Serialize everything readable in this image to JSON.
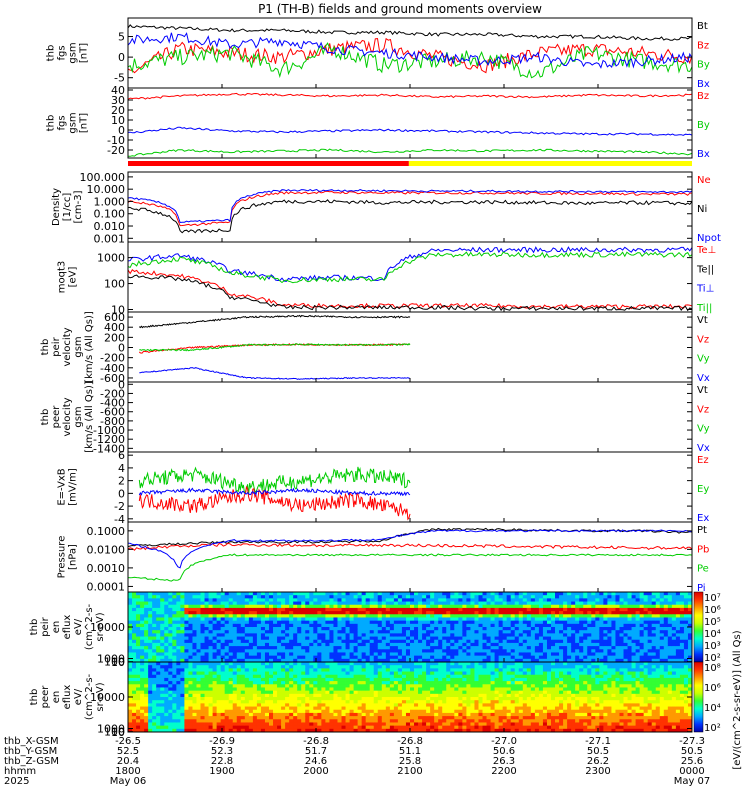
{
  "title": "P1 (TH-B) fields and ground moments overview",
  "chart_data": [
    {
      "type": "line",
      "ylabel": [
        "thb",
        "fgs",
        "gsm",
        "[nT]"
      ],
      "yticks": [
        5,
        0,
        -5
      ],
      "ylim": [
        -7.5,
        9.5
      ],
      "legend": [
        "Bt",
        "Bz",
        "By",
        "Bx"
      ],
      "legend_colors": [
        "#000000",
        "#ff0000",
        "#00cc00",
        "#0000ff"
      ],
      "series": [
        {
          "name": "Bt",
          "color": "#000000",
          "values": [
            7.5,
            7,
            6.5,
            6.5,
            6,
            6,
            5.5,
            5.5,
            5,
            5,
            4.5,
            4.5
          ],
          "noise": 0.4
        },
        {
          "name": "Bz",
          "color": "#ff0000",
          "values": [
            -4,
            2,
            1,
            0,
            2,
            3,
            0,
            -2,
            1,
            2,
            1,
            0
          ],
          "noise": 1.8
        },
        {
          "name": "By",
          "color": "#00cc00",
          "values": [
            -2,
            0,
            1,
            -3,
            2,
            -2,
            -1,
            0,
            -4,
            1,
            -1,
            -2
          ],
          "noise": 2.0
        },
        {
          "name": "Bx",
          "color": "#0000ff",
          "values": [
            4,
            5,
            3,
            4,
            2,
            1,
            0,
            -1,
            0,
            -2,
            -1,
            0
          ],
          "noise": 1.2
        }
      ]
    },
    {
      "type": "line",
      "ylabel": [
        "thb",
        "fgs",
        "gsm",
        "[nT]"
      ],
      "yticks": [
        40,
        30,
        20,
        10,
        0,
        -10,
        -20
      ],
      "ylim": [
        -28,
        42
      ],
      "legend": [
        "Bz",
        "By",
        "Bx"
      ],
      "legend_colors": [
        "#ff0000",
        "#00cc00",
        "#0000ff"
      ],
      "series": [
        {
          "name": "Bz",
          "color": "#ff0000",
          "values": [
            31,
            34,
            36,
            35,
            34,
            35,
            33,
            34,
            33,
            35,
            34,
            35
          ],
          "noise": 1
        },
        {
          "name": "By",
          "color": "#00cc00",
          "values": [
            -26,
            -20,
            -22,
            -21,
            -20,
            -22,
            -20,
            -21,
            -20,
            -21,
            -22,
            -24
          ],
          "noise": 1
        },
        {
          "name": "Bx",
          "color": "#0000ff",
          "values": [
            -3,
            2,
            -1,
            -2,
            -1,
            0,
            -1,
            -2,
            -3,
            -4,
            -4,
            -5
          ],
          "noise": 1
        }
      ]
    },
    {
      "type": "line",
      "scale": "log",
      "ylabel": [
        "Density",
        "[1/cc]",
        "[cm-3]"
      ],
      "yticks": [
        "100.000",
        "10.000",
        "1.000",
        "0.100",
        "0.010",
        "0.001"
      ],
      "ylim": [
        0.0005,
        250
      ],
      "legend": [
        "Ne",
        "Ni",
        "Npot"
      ],
      "legend_colors": [
        "#ff0000",
        "#000000",
        "#0000ff"
      ],
      "series": [
        {
          "name": "Ne",
          "color": "#ff0000",
          "values": [
            1,
            0.01,
            0.02,
            5,
            5.5,
            5,
            5,
            5,
            4.5,
            4.5,
            4,
            4
          ],
          "noise": 0.1
        },
        {
          "name": "Ni",
          "color": "#000000",
          "values": [
            0.3,
            0.003,
            0.005,
            1,
            1,
            0.8,
            0.9,
            0.9,
            0.8,
            0.7,
            0.8,
            0.7
          ],
          "noise": 0.15
        },
        {
          "name": "Npot",
          "color": "#0000ff",
          "values": [
            2,
            0.02,
            0.03,
            8,
            8,
            7.5,
            7,
            7,
            6.5,
            6.5,
            6,
            6
          ],
          "noise": 0.08
        }
      ]
    },
    {
      "type": "line",
      "scale": "log",
      "ylabel": [
        "moqt3",
        "[eV]"
      ],
      "yticks": [
        "1000",
        "100",
        "10"
      ],
      "ylim": [
        8,
        4000
      ],
      "legend": [
        "Te⊥",
        "Te||",
        "Ti⊥",
        "Ti||"
      ],
      "legend_colors": [
        "#ff0000",
        "#000000",
        "#0000ff",
        "#00cc00"
      ],
      "series": [
        {
          "name": "Ti⊥",
          "color": "#0000ff",
          "values": [
            800,
            1200,
            300,
            150,
            170,
            160,
            1900,
            2000,
            2000,
            2000,
            2000,
            2000
          ],
          "noise": 0.1
        },
        {
          "name": "Ti||",
          "color": "#00cc00",
          "values": [
            500,
            900,
            250,
            130,
            150,
            140,
            1300,
            1300,
            1300,
            1300,
            1300,
            1300
          ],
          "noise": 0.1
        },
        {
          "name": "Te⊥",
          "color": "#ff0000",
          "values": [
            300,
            200,
            40,
            15,
            14,
            14,
            14,
            14,
            13,
            13,
            13,
            13
          ],
          "noise": 0.08
        },
        {
          "name": "Te||",
          "color": "#000000",
          "values": [
            200,
            150,
            30,
            12,
            12,
            12,
            12,
            11,
            11,
            11,
            11,
            11
          ],
          "noise": 0.08
        }
      ]
    },
    {
      "type": "line",
      "ylabel": [
        "thb",
        "peir",
        "velocity",
        "gsm",
        "[km/s (All Qs)]"
      ],
      "yticks": [
        600,
        400,
        200,
        0,
        -200,
        -400,
        -600
      ],
      "ylim": [
        -680,
        700
      ],
      "legend": [
        "Vt",
        "Vz",
        "Vy",
        "Vx"
      ],
      "legend_colors": [
        "#000000",
        "#ff0000",
        "#00cc00",
        "#0000ff"
      ],
      "series": [
        {
          "name": "Vt",
          "color": "#000000",
          "values": [
            400,
            500,
            600,
            620,
            600,
            600
          ],
          "noise": 15
        },
        {
          "name": "Vz",
          "color": "#ff0000",
          "values": [
            -100,
            0,
            50,
            60,
            50,
            60
          ],
          "noise": 15
        },
        {
          "name": "Vy",
          "color": "#00cc00",
          "values": [
            -50,
            -50,
            50,
            60,
            50,
            60
          ],
          "noise": 15
        },
        {
          "name": "Vx",
          "color": "#0000ff",
          "values": [
            -500,
            -400,
            -600,
            -620,
            -600,
            -600
          ],
          "noise": 10
        }
      ],
      "end_fraction": 0.5
    },
    {
      "type": "line",
      "ylabel": [
        "thb",
        "peer",
        "velocity",
        "gsm",
        "[km/s (All Qs)]"
      ],
      "yticks": [
        0,
        -200,
        -400,
        -600,
        -800,
        -1000,
        -1200,
        -1400
      ],
      "ylim": [
        -1480,
        50
      ],
      "legend": [
        "Vt",
        "Vz",
        "Vy",
        "Vx"
      ],
      "legend_colors": [
        "#000000",
        "#ff0000",
        "#00cc00",
        "#0000ff"
      ],
      "series": []
    },
    {
      "type": "line",
      "ylabel": [
        "E=-VxB",
        "[mV/m]"
      ],
      "yticks": [
        6,
        4,
        2,
        0,
        -2,
        -4
      ],
      "ylim": [
        -4.5,
        6.5
      ],
      "legend": [
        "Ez",
        "Ey",
        "Ex"
      ],
      "legend_colors": [
        "#ff0000",
        "#00cc00",
        "#0000ff"
      ],
      "series": [
        {
          "name": "Ey",
          "color": "#00cc00",
          "values": [
            2,
            3,
            1,
            2,
            3,
            2
          ],
          "noise": 1.2
        },
        {
          "name": "Ez",
          "color": "#ff0000",
          "values": [
            -1,
            -2,
            0,
            -2,
            -1,
            -3
          ],
          "noise": 1.2
        },
        {
          "name": "Ex",
          "color": "#0000ff",
          "values": [
            0,
            0.5,
            0,
            0.5,
            0,
            0
          ],
          "noise": 0.3
        }
      ],
      "end_fraction": 0.5
    },
    {
      "type": "line",
      "scale": "log",
      "ylabel": [
        "Pressure",
        "[nPa]"
      ],
      "yticks": [
        "0.1000",
        "0.0100",
        "0.0010",
        "0.0001"
      ],
      "ylim": [
        5e-05,
        0.3
      ],
      "legend": [
        "Pt",
        "Pb",
        "Pe",
        "Pi"
      ],
      "legend_colors": [
        "#000000",
        "#ff0000",
        "#00cc00",
        "#0000ff"
      ],
      "series": [
        {
          "name": "Pt",
          "color": "#000000",
          "values": [
            0.015,
            0.02,
            0.025,
            0.025,
            0.025,
            0.03,
            0.12,
            0.12,
            0.11,
            0.1,
            0.1,
            0.08
          ],
          "noise": 0.06
        },
        {
          "name": "Pb",
          "color": "#ff0000",
          "values": [
            0.01,
            0.015,
            0.018,
            0.017,
            0.016,
            0.017,
            0.016,
            0.015,
            0.014,
            0.013,
            0.012,
            0.012
          ],
          "noise": 0.08
        },
        {
          "name": "Pe",
          "color": "#00cc00",
          "values": [
            0.0003,
            0.0002,
            0.005,
            0.005,
            0.005,
            0.005,
            0.005,
            0.005,
            0.005,
            0.005,
            0.005,
            0.005
          ],
          "noise": 0.05
        },
        {
          "name": "Pi",
          "color": "#0000ff",
          "values": [
            0.02,
            0.0005,
            0.03,
            0.03,
            0.03,
            0.035,
            0.1,
            0.1,
            0.1,
            0.1,
            0.1,
            0.1
          ],
          "noise": 0.05
        }
      ]
    },
    {
      "type": "heatmap",
      "ylabel": [
        "thb",
        "peir",
        "en",
        "eflux",
        "eV/",
        "(cm^2-s-",
        "sr-eV)"
      ],
      "yticks": [
        "10000",
        "1000",
        "100",
        "10"
      ],
      "ylim": [
        5,
        20000
      ],
      "colorbar_ticks": [
        "10⁷",
        "10⁶",
        "10⁵",
        "10⁴",
        "10³",
        "10²"
      ]
    },
    {
      "type": "heatmap",
      "ylabel": [
        "thb",
        "peer",
        "en",
        "eflux",
        "eV/",
        "(cm^2-s-",
        "sr-eV)"
      ],
      "yticks": [
        "10000",
        "1000",
        "100",
        "10"
      ],
      "ylim": [
        5,
        20000
      ],
      "colorbar_ticks": [
        "10⁸",
        "10⁶",
        "10⁴",
        "10²"
      ],
      "colorbar_label": "[eV/(cm^2-s-sr-eV)] (All Qs)"
    }
  ],
  "xaxis": {
    "row_labels": [
      "thb_X-GSM",
      "thb_Y-GSM",
      "thb_Z-GSM",
      "hhmm",
      "2025"
    ],
    "columns": [
      [
        "-26.5",
        "52.5",
        "20.4",
        "1800",
        "May 06"
      ],
      [
        "-26.9",
        "52.3",
        "22.8",
        "1900",
        ""
      ],
      [
        "-26.8",
        "51.7",
        "24.6",
        "2000",
        ""
      ],
      [
        "-26.8",
        "51.1",
        "25.8",
        "2100",
        ""
      ],
      [
        "-27.0",
        "50.6",
        "26.3",
        "2200",
        ""
      ],
      [
        "-27.1",
        "50.5",
        "26.2",
        "2300",
        ""
      ],
      [
        "-27.3",
        "50.5",
        "25.6",
        "0000",
        "May 07"
      ]
    ]
  },
  "mode_bar": {
    "colors": [
      "#ff0000",
      "#ffff00"
    ],
    "split_fraction": 0.498
  }
}
